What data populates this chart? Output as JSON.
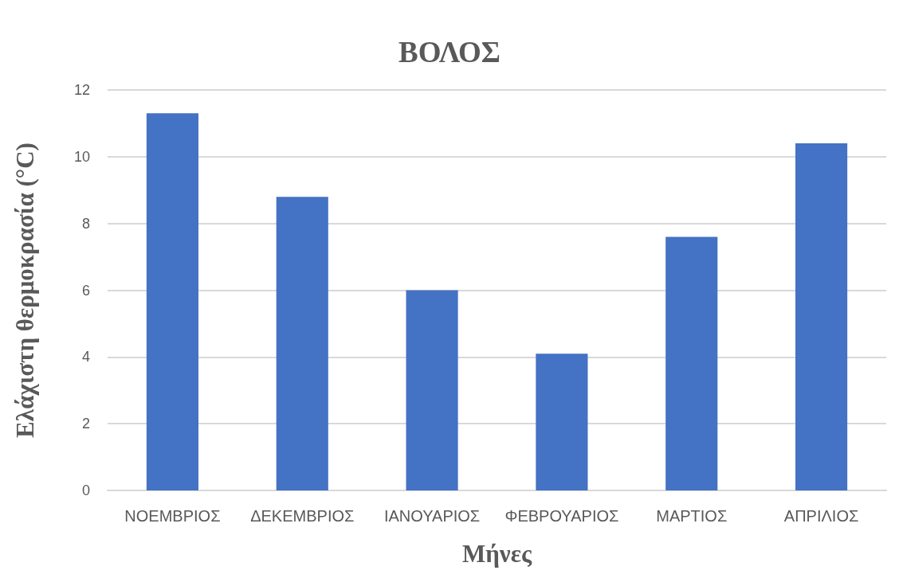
{
  "chart_data": {
    "type": "bar",
    "title": "ΒΟΛΟΣ",
    "xlabel": "Μήνες",
    "ylabel": "Ελάχιστη θερμοκρασία (°C)",
    "categories": [
      "ΝΟΕΜΒΡΙΟΣ",
      "ΔΕΚΕΜΒΡΙΟΣ",
      "ΙΑΝΟΥΑΡΙΟΣ",
      "ΦΕΒΡΟΥΑΡΙΟΣ",
      "ΜΑΡΤΙΟΣ",
      "ΑΠΡΙΛΙΟΣ"
    ],
    "values": [
      11.3,
      8.8,
      6.0,
      4.1,
      7.6,
      10.4
    ],
    "color": "#4472c4",
    "ylim": [
      0,
      12
    ],
    "yticks": [
      0,
      2,
      4,
      6,
      8,
      10,
      12
    ],
    "grid": "y"
  }
}
